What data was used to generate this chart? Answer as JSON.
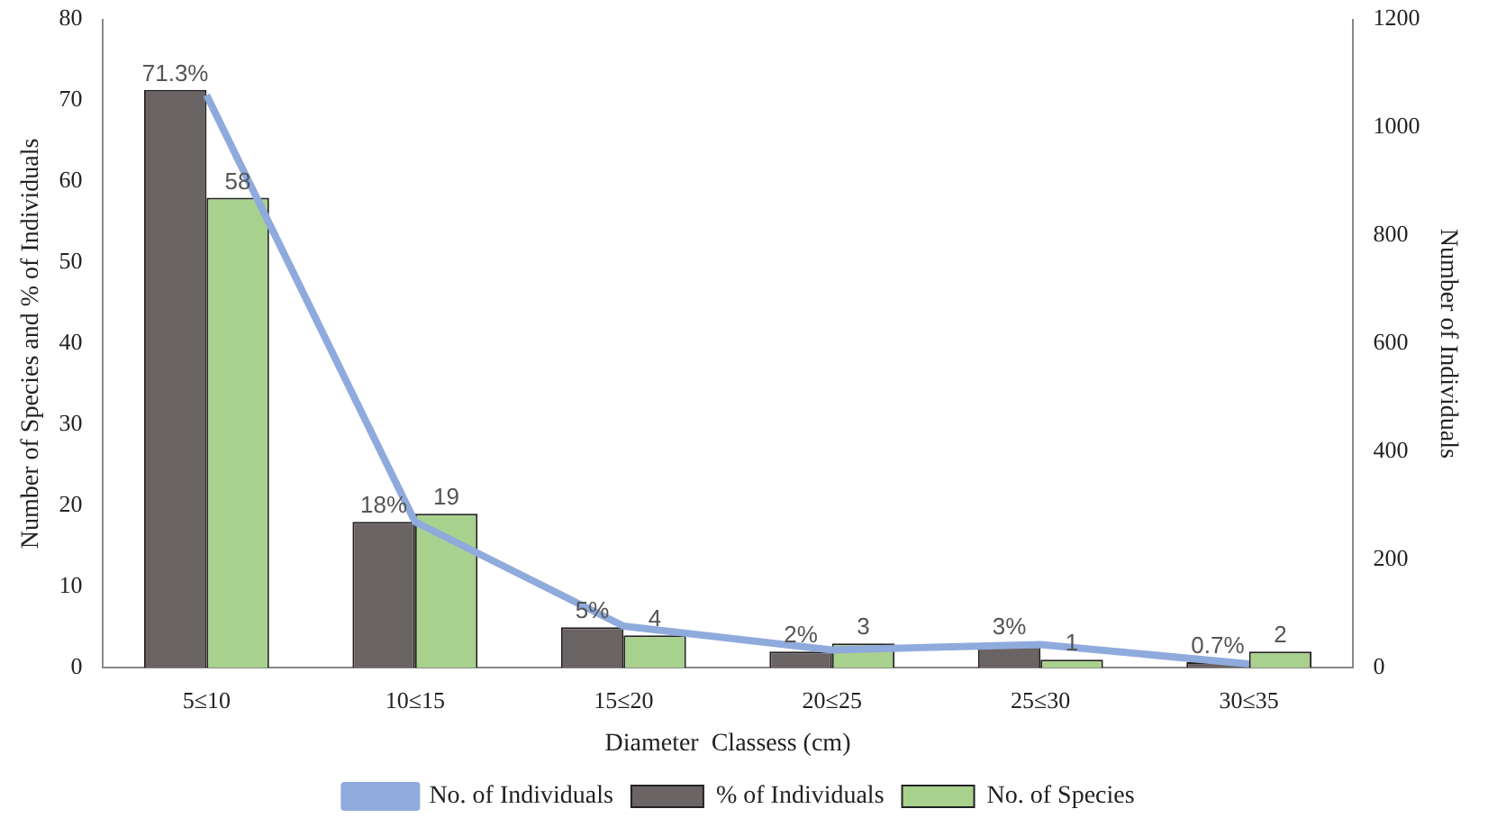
{
  "chart_data": {
    "type": "bar",
    "xlabel": "Diameter  Classess (cm)",
    "ylabel": "Number of Species and % of Individuals",
    "y2label": "Number of Individuals",
    "categories": [
      "5≤10",
      "10≤15",
      "15≤20",
      "20≤25",
      "25≤30",
      "30≤35"
    ],
    "series": [
      {
        "name": "% of Individuals",
        "color": "#6b6464",
        "values": [
          71.3,
          18,
          5,
          2,
          3,
          0.7
        ],
        "value_labels": [
          "71.3%",
          "18%",
          "5%",
          "2%",
          "3%",
          "0.7%"
        ]
      },
      {
        "name": "No. of Species",
        "color": "#a9d18e",
        "values": [
          58,
          19,
          4,
          3,
          1,
          2
        ],
        "value_labels": [
          "58",
          "19",
          "4",
          "3",
          "1",
          "2"
        ]
      },
      {
        "name": "No. of Individuals",
        "type": "line",
        "axis": "y2",
        "color": "#8faadc",
        "values": [
          1060,
          270,
          77,
          33,
          43,
          7
        ]
      }
    ],
    "ylim": [
      0,
      80
    ],
    "yticks": [
      0,
      10,
      20,
      30,
      40,
      50,
      60,
      70,
      80
    ],
    "y2lim": [
      0,
      1200
    ],
    "y2ticks": [
      0,
      200,
      400,
      600,
      800,
      1000,
      1200
    ],
    "grid": false,
    "legend": "bottom",
    "marker": "none"
  }
}
